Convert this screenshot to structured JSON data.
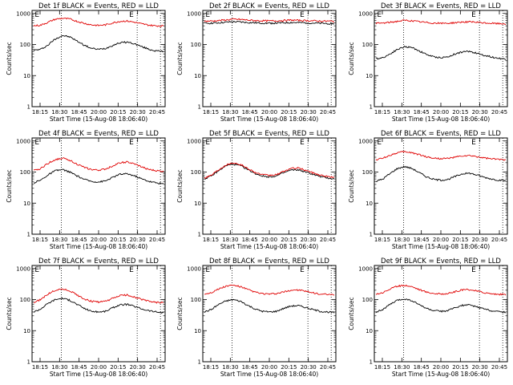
{
  "figure": {
    "title_color_black": "#000000",
    "series_colors": {
      "Events": "#000000",
      "LLD": "#e00000"
    }
  },
  "chart_data": [
    {
      "type": "line",
      "title": "Det 1f BLACK = Events, RED = LLD",
      "xlabel": "Start Time (15-Aug-08 18:06:40)",
      "ylabel": "Counts/sec",
      "x_ticks": [
        "18:15",
        "18:30",
        "18:45",
        "20:00",
        "20:15",
        "20:30",
        "20:45"
      ],
      "y_ticks": [
        "1",
        "10",
        "100",
        "1000"
      ],
      "ylim": [
        1,
        1000
      ],
      "yscale": "log",
      "markers": [
        "E",
        "E"
      ],
      "series": [
        {
          "name": "Events",
          "color": "#000000",
          "values": [
            65,
            70,
            95,
            150,
            195,
            175,
            130,
            95,
            75,
            70,
            75,
            95,
            115,
            120,
            105,
            85,
            70,
            62,
            60
          ]
        },
        {
          "name": "LLD",
          "color": "#e00000",
          "values": [
            400,
            420,
            520,
            650,
            700,
            660,
            560,
            480,
            430,
            410,
            430,
            500,
            560,
            570,
            520,
            460,
            420,
            400,
            395
          ]
        }
      ]
    },
    {
      "type": "line",
      "title": "Det 2f BLACK = Events, RED = LLD",
      "xlabel": "Start Time (15-Aug-08 18:06:40)",
      "ylabel": "Counts/sec",
      "x_ticks": [
        "18:15",
        "18:30",
        "18:45",
        "20:00",
        "20:15",
        "20:30",
        "20:45"
      ],
      "y_ticks": [
        "1",
        "10",
        "100",
        "1000"
      ],
      "ylim": [
        1,
        1000
      ],
      "yscale": "log",
      "markers": [
        "E",
        "E"
      ],
      "series": [
        {
          "name": "Events",
          "color": "#000000",
          "values": [
            480,
            490,
            500,
            520,
            540,
            530,
            510,
            500,
            490,
            485,
            490,
            500,
            510,
            505,
            500,
            490,
            480,
            475,
            470
          ]
        },
        {
          "name": "LLD",
          "color": "#e00000",
          "values": [
            560,
            570,
            590,
            620,
            650,
            640,
            610,
            590,
            580,
            575,
            580,
            595,
            610,
            600,
            590,
            580,
            570,
            565,
            560
          ]
        }
      ]
    },
    {
      "type": "line",
      "title": "Det 3f BLACK = Events, RED = LLD",
      "xlabel": "Start Time (15-Aug-08 18:06:40)",
      "ylabel": "Counts/sec",
      "x_ticks": [
        "18:15",
        "18:30",
        "18:45",
        "20:00",
        "20:15",
        "20:30",
        "20:45"
      ],
      "y_ticks": [
        "1",
        "10",
        "100",
        "1000"
      ],
      "ylim": [
        1,
        1000
      ],
      "yscale": "log",
      "markers": [
        "E",
        "E"
      ],
      "series": [
        {
          "name": "Events",
          "color": "#000000",
          "values": [
            35,
            38,
            50,
            70,
            85,
            80,
            62,
            48,
            40,
            38,
            40,
            50,
            58,
            60,
            52,
            45,
            40,
            36,
            34
          ]
        },
        {
          "name": "LLD",
          "color": "#e00000",
          "values": [
            480,
            490,
            520,
            560,
            600,
            580,
            540,
            510,
            490,
            480,
            485,
            505,
            530,
            535,
            515,
            495,
            480,
            470,
            465
          ]
        }
      ]
    },
    {
      "type": "line",
      "title": "Det 4f BLACK = Events, RED = LLD",
      "xlabel": "Start Time (15-Aug-08 18:06:40)",
      "ylabel": "Counts/sec",
      "x_ticks": [
        "18:15",
        "18:30",
        "18:45",
        "20:00",
        "20:15",
        "20:30",
        "20:45"
      ],
      "y_ticks": [
        "1",
        "10",
        "100",
        "1000"
      ],
      "ylim": [
        1,
        1000
      ],
      "yscale": "log",
      "markers": [
        "E",
        "E"
      ],
      "series": [
        {
          "name": "Events",
          "color": "#000000",
          "values": [
            45,
            55,
            80,
            110,
            120,
            100,
            75,
            58,
            50,
            48,
            52,
            68,
            85,
            88,
            75,
            60,
            50,
            45,
            42
          ]
        },
        {
          "name": "LLD",
          "color": "#e00000",
          "values": [
            110,
            130,
            190,
            250,
            280,
            240,
            180,
            140,
            120,
            115,
            125,
            160,
            200,
            210,
            180,
            145,
            120,
            110,
            105
          ]
        }
      ]
    },
    {
      "type": "line",
      "title": "Det 5f BLACK = Events, RED = LLD",
      "xlabel": "Start Time (15-Aug-08 18:06:40)",
      "ylabel": "Counts/sec",
      "x_ticks": [
        "18:15",
        "18:30",
        "18:45",
        "20:00",
        "20:15",
        "20:30",
        "20:45"
      ],
      "y_ticks": [
        "1",
        "10",
        "100",
        "1000"
      ],
      "ylim": [
        1,
        1000
      ],
      "yscale": "log",
      "markers": [
        "E",
        "E"
      ],
      "series": [
        {
          "name": "Events",
          "color": "#000000",
          "values": [
            60,
            75,
            110,
            160,
            180,
            160,
            120,
            90,
            75,
            70,
            75,
            95,
            115,
            118,
            100,
            85,
            72,
            65,
            60
          ]
        },
        {
          "name": "LLD",
          "color": "#e00000",
          "values": [
            65,
            80,
            120,
            170,
            200,
            175,
            130,
            98,
            82,
            78,
            82,
            105,
            130,
            135,
            115,
            95,
            80,
            72,
            68
          ]
        }
      ]
    },
    {
      "type": "line",
      "title": "Det 6f BLACK = Events, RED = LLD",
      "xlabel": "Start Time (15-Aug-08 18:06:40)",
      "ylabel": "Counts/sec",
      "x_ticks": [
        "18:15",
        "18:30",
        "18:45",
        "20:00",
        "20:15",
        "20:30",
        "20:45"
      ],
      "y_ticks": [
        "1",
        "10",
        "100",
        "1000"
      ],
      "ylim": [
        1,
        1000
      ],
      "yscale": "log",
      "markers": [
        "E",
        "E"
      ],
      "series": [
        {
          "name": "Events",
          "color": "#000000",
          "values": [
            50,
            60,
            90,
            130,
            150,
            130,
            95,
            70,
            58,
            55,
            58,
            72,
            88,
            92,
            80,
            68,
            60,
            55,
            52
          ]
        },
        {
          "name": "LLD",
          "color": "#e00000",
          "values": [
            250,
            280,
            350,
            420,
            450,
            420,
            360,
            310,
            280,
            270,
            275,
            300,
            330,
            335,
            310,
            285,
            265,
            255,
            250
          ]
        }
      ]
    },
    {
      "type": "line",
      "title": "Det 7f BLACK = Events, RED = LLD",
      "xlabel": "Start Time (15-Aug-08 18:06:40)",
      "ylabel": "Counts/sec",
      "x_ticks": [
        "18:15",
        "18:30",
        "18:45",
        "20:00",
        "20:15",
        "20:30",
        "20:45"
      ],
      "y_ticks": [
        "1",
        "10",
        "100",
        "1000"
      ],
      "ylim": [
        1,
        1000
      ],
      "yscale": "log",
      "markers": [
        "E",
        "E"
      ],
      "series": [
        {
          "name": "Events",
          "color": "#000000",
          "values": [
            40,
            50,
            75,
            100,
            110,
            95,
            70,
            52,
            42,
            40,
            42,
            55,
            68,
            70,
            60,
            50,
            44,
            40,
            38
          ]
        },
        {
          "name": "LLD",
          "color": "#e00000",
          "values": [
            80,
            100,
            150,
            200,
            220,
            190,
            140,
            105,
            88,
            84,
            88,
            110,
            135,
            140,
            120,
            100,
            88,
            82,
            80
          ]
        }
      ]
    },
    {
      "type": "line",
      "title": "Det 8f BLACK = Events, RED = LLD",
      "xlabel": "Start Time (15-Aug-08 18:06:40)",
      "ylabel": "Counts/sec",
      "x_ticks": [
        "18:15",
        "18:30",
        "18:45",
        "20:00",
        "20:15",
        "20:30",
        "20:45"
      ],
      "y_ticks": [
        "1",
        "10",
        "100",
        "1000"
      ],
      "ylim": [
        1,
        1000
      ],
      "yscale": "log",
      "markers": [
        "E",
        "E"
      ],
      "series": [
        {
          "name": "Events",
          "color": "#000000",
          "values": [
            40,
            48,
            70,
            90,
            100,
            88,
            65,
            50,
            42,
            40,
            42,
            52,
            62,
            64,
            56,
            48,
            42,
            40,
            38
          ]
        },
        {
          "name": "LLD",
          "color": "#e00000",
          "values": [
            150,
            170,
            220,
            270,
            290,
            260,
            210,
            175,
            155,
            150,
            155,
            175,
            200,
            205,
            185,
            165,
            150,
            145,
            140
          ]
        }
      ]
    },
    {
      "type": "line",
      "title": "Det 9f BLACK = Events, RED = LLD",
      "xlabel": "Start Time (15-Aug-08 18:06:40)",
      "ylabel": "Counts/sec",
      "x_ticks": [
        "18:15",
        "18:30",
        "18:45",
        "20:00",
        "20:15",
        "20:30",
        "20:45"
      ],
      "y_ticks": [
        "1",
        "10",
        "100",
        "1000"
      ],
      "ylim": [
        1,
        1000
      ],
      "yscale": "log",
      "markers": [
        "E",
        "E"
      ],
      "series": [
        {
          "name": "Events",
          "color": "#000000",
          "values": [
            40,
            48,
            70,
            95,
            105,
            92,
            68,
            52,
            44,
            42,
            44,
            55,
            65,
            67,
            58,
            50,
            44,
            41,
            40
          ]
        },
        {
          "name": "LLD",
          "color": "#e00000",
          "values": [
            150,
            170,
            220,
            270,
            290,
            260,
            210,
            175,
            158,
            152,
            156,
            178,
            205,
            210,
            188,
            168,
            155,
            148,
            145
          ]
        }
      ]
    }
  ]
}
